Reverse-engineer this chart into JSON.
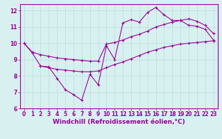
{
  "line1_x": [
    0,
    1,
    2,
    3,
    4,
    5,
    6,
    7,
    8,
    9,
    10,
    11,
    12,
    13,
    14,
    15,
    16,
    17,
    18,
    19,
    20,
    21,
    22,
    23
  ],
  "line1_y": [
    10.0,
    9.4,
    8.6,
    8.55,
    7.85,
    7.15,
    6.85,
    6.5,
    8.1,
    7.45,
    9.85,
    9.0,
    11.25,
    11.45,
    11.3,
    11.9,
    12.2,
    11.75,
    11.4,
    11.4,
    11.1,
    11.05,
    10.85,
    10.2
  ],
  "line2_x": [
    0,
    1,
    2,
    3,
    4,
    5,
    6,
    7,
    8,
    9,
    10,
    11,
    12,
    13,
    14,
    15,
    16,
    17,
    18,
    19,
    20,
    21,
    22,
    23
  ],
  "line2_y": [
    10.0,
    9.45,
    9.3,
    9.2,
    9.1,
    9.05,
    9.0,
    8.95,
    8.9,
    8.9,
    9.95,
    10.05,
    10.2,
    10.4,
    10.55,
    10.75,
    11.0,
    11.15,
    11.3,
    11.4,
    11.5,
    11.35,
    11.1,
    10.6
  ],
  "line3_x": [
    2,
    3,
    4,
    5,
    6,
    7,
    8,
    9,
    10,
    11,
    12,
    13,
    14,
    15,
    16,
    17,
    18,
    19,
    20,
    21,
    22,
    23
  ],
  "line3_y": [
    8.6,
    8.5,
    8.4,
    8.35,
    8.3,
    8.25,
    8.25,
    8.3,
    8.5,
    8.7,
    8.85,
    9.05,
    9.25,
    9.45,
    9.6,
    9.75,
    9.85,
    9.95,
    10.0,
    10.05,
    10.1,
    10.15
  ],
  "color": "#990099",
  "bg_color": "#d8f0f0",
  "grid_color": "#b8dede",
  "xlabel": "Windchill (Refroidissement éolien,°C)",
  "xlim": [
    -0.5,
    23.5
  ],
  "ylim": [
    6,
    12.4
  ],
  "xticks": [
    0,
    1,
    2,
    3,
    4,
    5,
    6,
    7,
    8,
    9,
    10,
    11,
    12,
    13,
    14,
    15,
    16,
    17,
    18,
    19,
    20,
    21,
    22,
    23
  ],
  "yticks": [
    6,
    7,
    8,
    9,
    10,
    11,
    12
  ],
  "marker": "+",
  "markersize": 3,
  "linewidth": 0.8,
  "xlabel_fontsize": 6.5,
  "tick_fontsize": 5.5
}
